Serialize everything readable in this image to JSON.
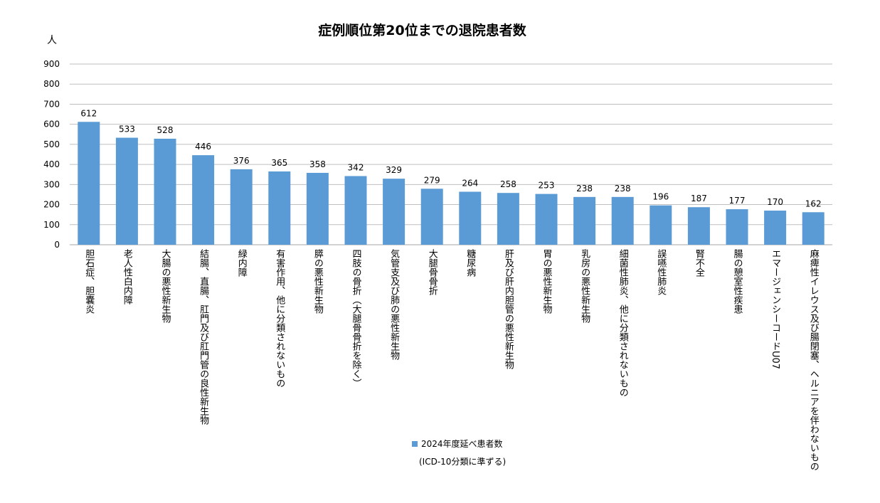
{
  "chart_data": {
    "type": "bar",
    "title": "症例順位第20位までの退院患者数",
    "ylabel": "人",
    "ylim": [
      0,
      900
    ],
    "yticks": [
      0,
      100,
      200,
      300,
      400,
      500,
      600,
      700,
      800,
      900
    ],
    "grid": true,
    "legend_position": "bottom",
    "bar_color": "#5b9bd5",
    "categories": [
      "胆石症、胆嚢炎",
      "老人性白内障",
      "大腸の悪性新生物",
      "結腸、直腸、肛門及び肛門管の良性新生物",
      "緑内障",
      "有害作用、他に分類されないもの",
      "膵の悪性新生物",
      "四肢の骨折（大腿骨骨折を除く）",
      "気管支及び肺の悪性新生物",
      "大腿骨骨折",
      "糖尿病",
      "肝及び肝内胆管の悪性新生物",
      "胃の悪性新生物",
      "乳房の悪性新生物",
      "細菌性肺炎、他に分類されないもの",
      "誤嚥性肺炎",
      "腎不全",
      "腸の憩室性疾患",
      "エマージェンシーコードU07",
      "麻痺性イレウス及び腸閉塞、ヘルニアを伴わないもの"
    ],
    "series": [
      {
        "name": "2024年度延べ患者数",
        "values": [
          612,
          533,
          528,
          446,
          376,
          365,
          358,
          342,
          329,
          279,
          264,
          258,
          253,
          238,
          238,
          196,
          187,
          177,
          170,
          162
        ]
      }
    ],
    "note": "(ICD-10分類に準ずる)"
  }
}
